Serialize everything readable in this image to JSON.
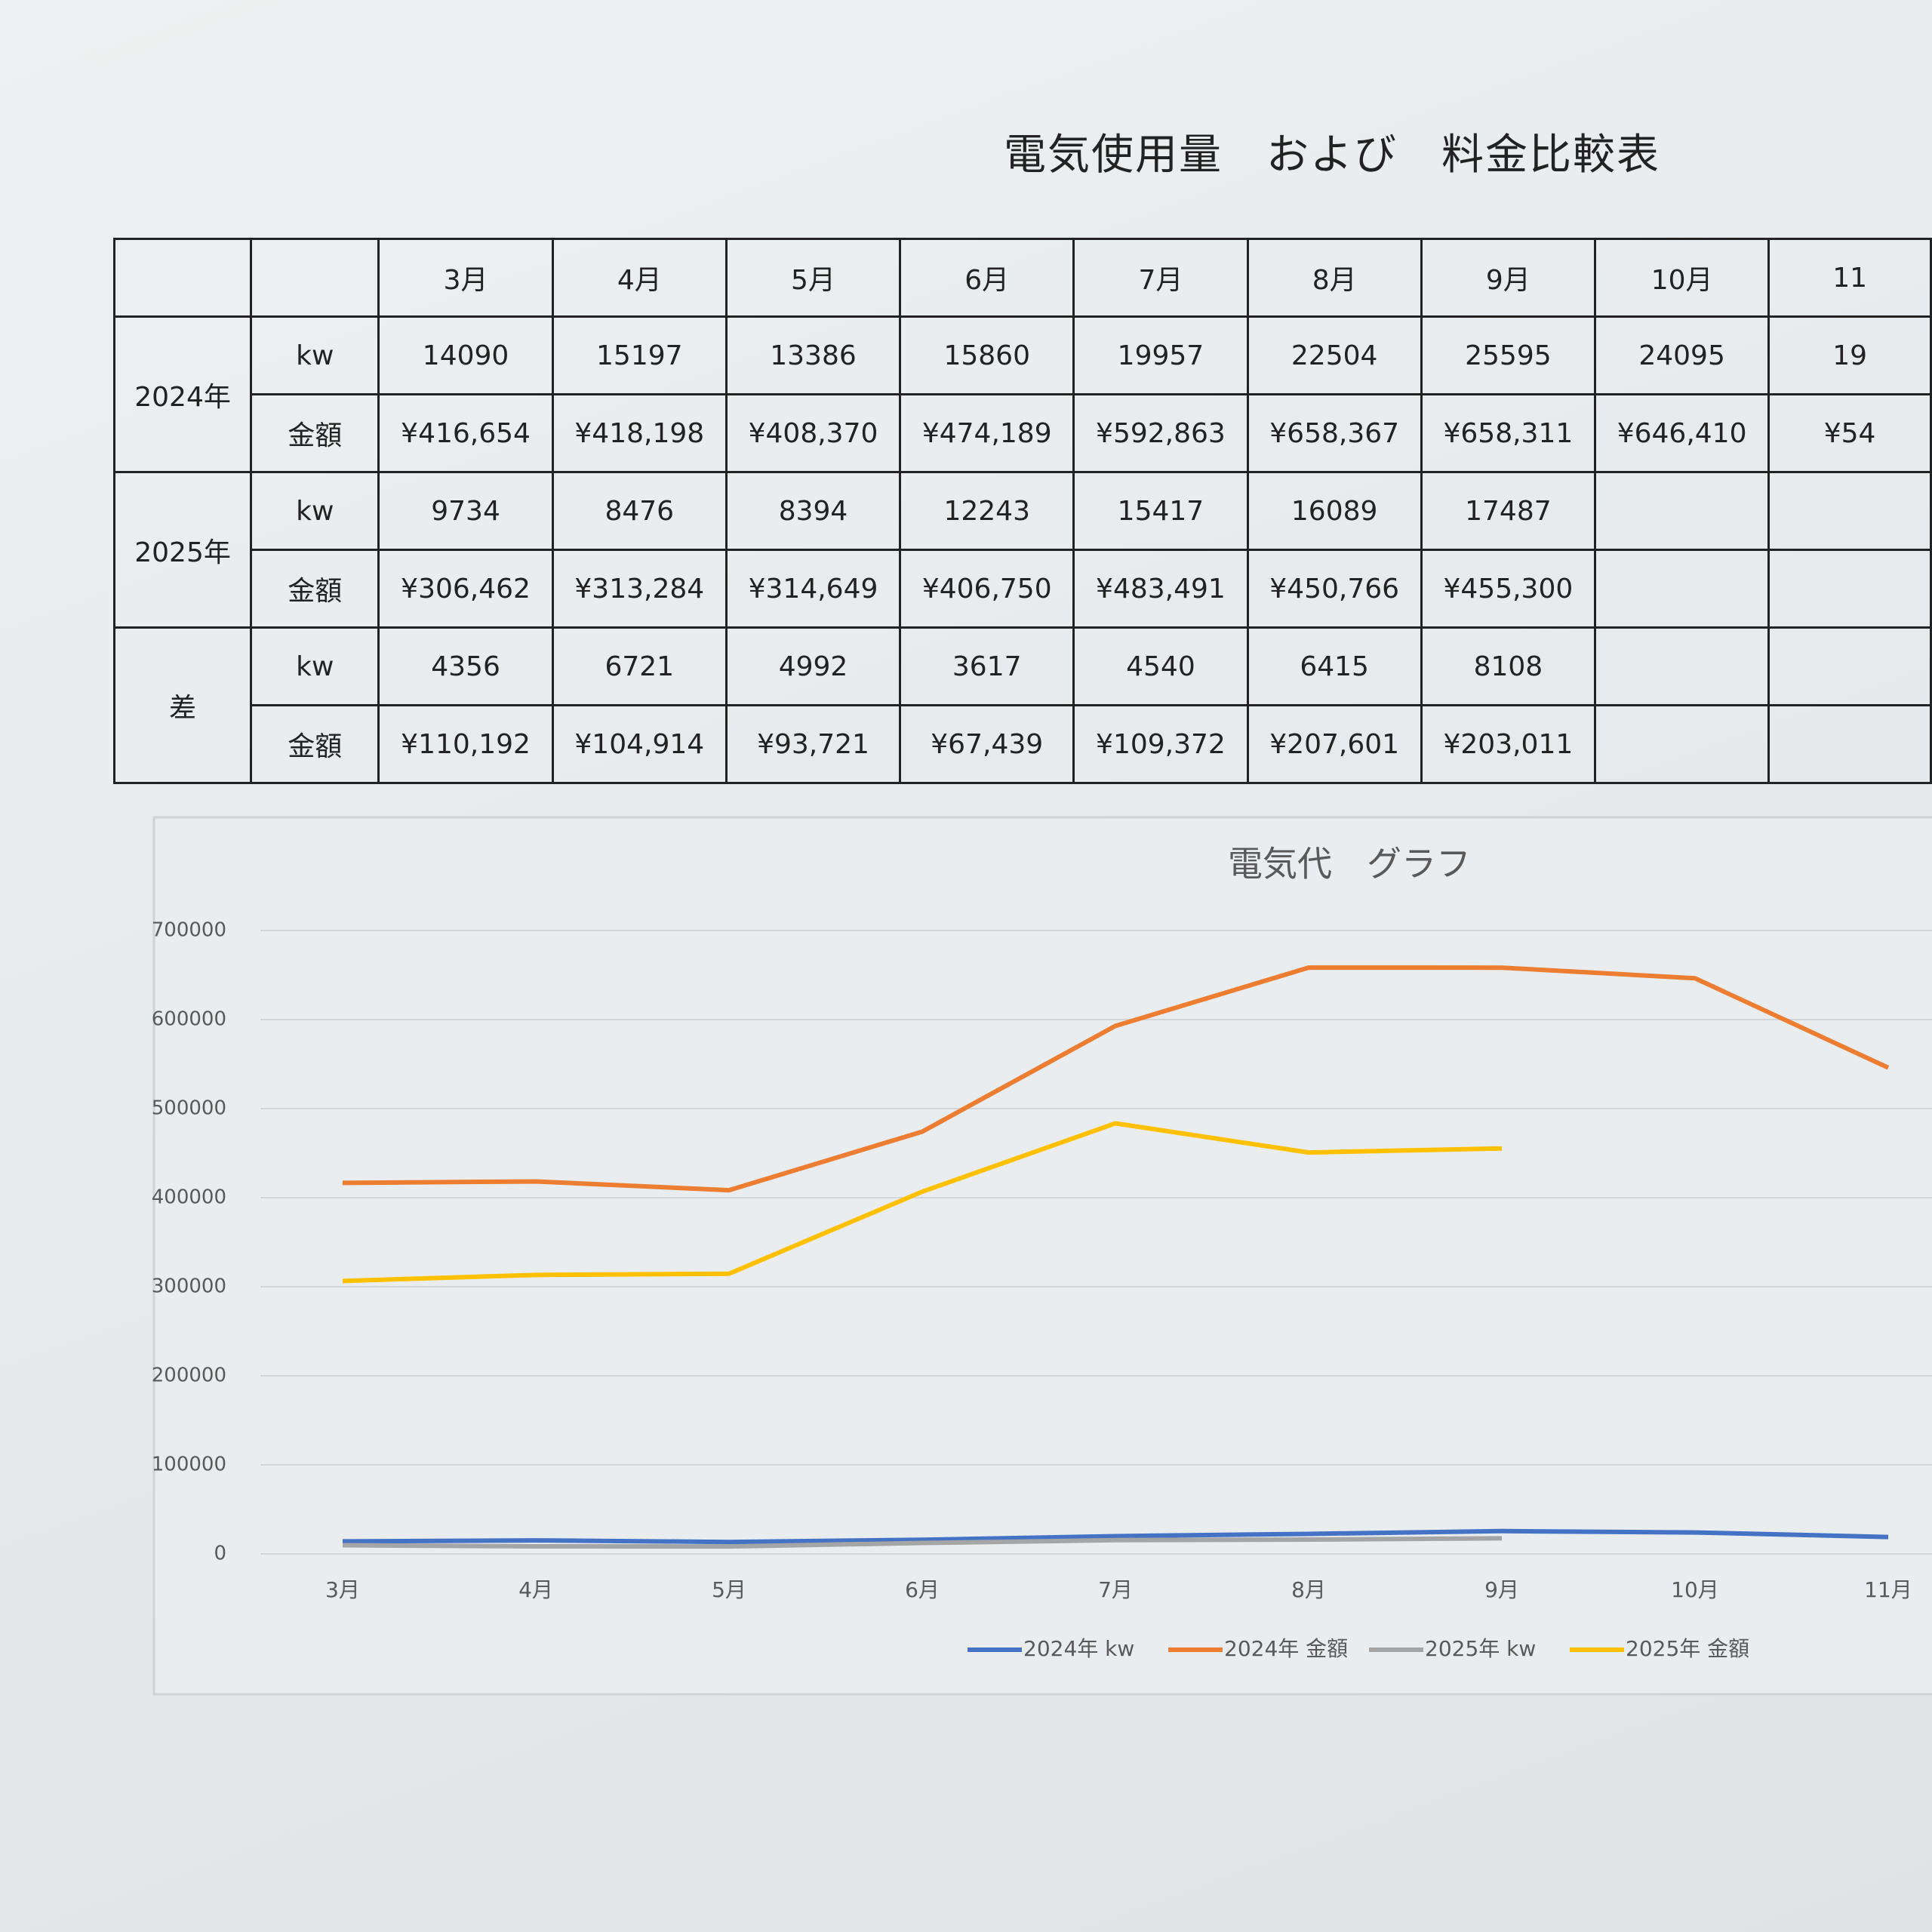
{
  "title": "電気使用量　および　料金比較表",
  "table": {
    "columns": [
      "3月",
      "4月",
      "5月",
      "6月",
      "7月",
      "8月",
      "9月",
      "10月",
      "11"
    ],
    "groups": [
      {
        "label": "2024年",
        "rows": [
          {
            "label": "kw",
            "cells": [
              "14090",
              "15197",
              "13386",
              "15860",
              "19957",
              "22504",
              "25595",
              "24095",
              "19"
            ]
          },
          {
            "label": "金額",
            "cells": [
              "¥416,654",
              "¥418,198",
              "¥408,370",
              "¥474,189",
              "¥592,863",
              "¥658,367",
              "¥658,311",
              "¥646,410",
              "¥54"
            ]
          }
        ]
      },
      {
        "label": "2025年",
        "rows": [
          {
            "label": "kw",
            "cells": [
              "9734",
              "8476",
              "8394",
              "12243",
              "15417",
              "16089",
              "17487"
            ]
          },
          {
            "label": "金額",
            "cells": [
              "¥306,462",
              "¥313,284",
              "¥314,649",
              "¥406,750",
              "¥483,491",
              "¥450,766",
              "¥455,300"
            ]
          }
        ]
      },
      {
        "label": "差",
        "rows": [
          {
            "label": "kw",
            "cells": [
              "4356",
              "6721",
              "4992",
              "3617",
              "4540",
              "6415",
              "8108"
            ]
          },
          {
            "label": "金額",
            "cells": [
              "¥110,192",
              "¥104,914",
              "¥93,721",
              "¥67,439",
              "¥109,372",
              "¥207,601",
              "¥203,011"
            ]
          }
        ]
      }
    ]
  },
  "chart_data": {
    "type": "line",
    "title": "電気代　グラフ",
    "categories": [
      "3月",
      "4月",
      "5月",
      "6月",
      "7月",
      "8月",
      "9月",
      "10月",
      "11月"
    ],
    "ylim": [
      0,
      700000
    ],
    "yticks": [
      0,
      100000,
      200000,
      300000,
      400000,
      500000,
      600000,
      700000
    ],
    "grid": true,
    "series": [
      {
        "name": "2024年 kw",
        "color": "#4472c4",
        "values": [
          14090,
          15197,
          13386,
          15860,
          19957,
          22504,
          25595,
          24095,
          19000
        ]
      },
      {
        "name": "2024年 金額",
        "color": "#ed7d31",
        "values": [
          416654,
          418198,
          408370,
          474189,
          592863,
          658367,
          658311,
          646410,
          546000
        ]
      },
      {
        "name": "2025年 kw",
        "color": "#a5a5a5",
        "values": [
          9734,
          8476,
          8394,
          12243,
          15417,
          16089,
          17487,
          null,
          null
        ]
      },
      {
        "name": "2025年 金額",
        "color": "#ffc000",
        "values": [
          306462,
          313284,
          314649,
          406750,
          483491,
          450766,
          455300,
          null,
          null
        ]
      }
    ]
  }
}
